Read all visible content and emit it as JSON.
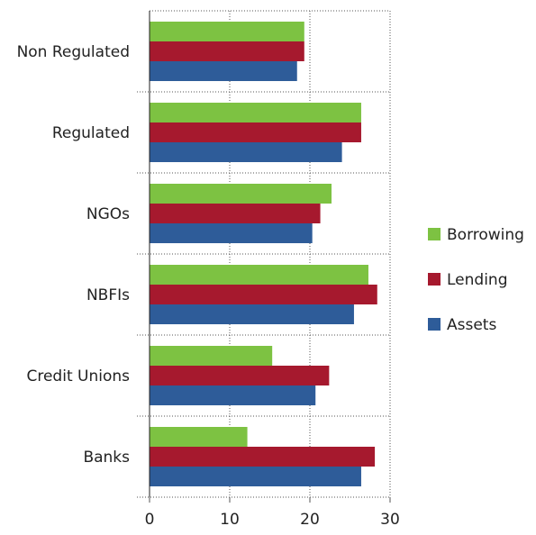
{
  "chart_data": {
    "type": "hbar",
    "categories": [
      "Non Regulated",
      "Regulated",
      "NGOs",
      "NBFIs",
      "Credit Unions",
      "Banks"
    ],
    "series": [
      {
        "name": "Borrowing",
        "color": "#7dc242",
        "values": [
          19.3,
          26.4,
          22.7,
          27.3,
          15.3,
          12.2
        ]
      },
      {
        "name": "Lending",
        "color": "#a6192e",
        "values": [
          19.3,
          26.4,
          21.3,
          28.4,
          22.4,
          28.1
        ]
      },
      {
        "name": "Assets",
        "color": "#2e5c99",
        "values": [
          18.4,
          24.0,
          20.3,
          25.5,
          20.7,
          26.4
        ]
      }
    ],
    "xlim": [
      0,
      30
    ],
    "xticks": [
      0,
      10,
      20,
      30
    ],
    "grid": true,
    "legend": "right"
  }
}
